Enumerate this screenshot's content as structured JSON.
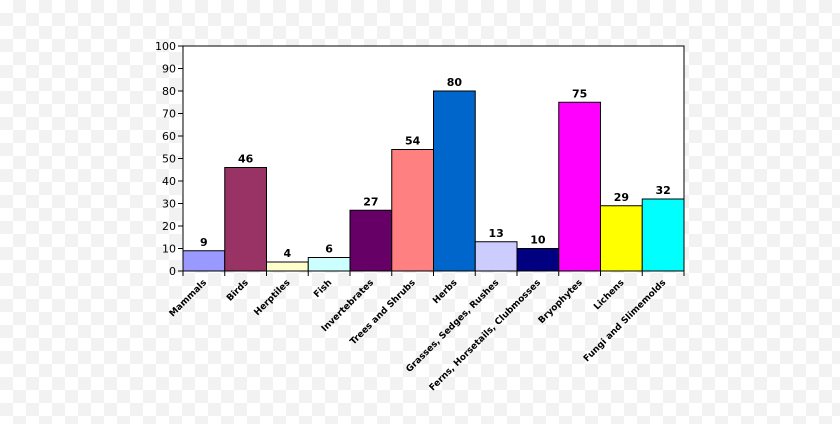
{
  "chart_data": {
    "type": "bar",
    "title": "",
    "xlabel": "",
    "ylabel": "",
    "ylim": [
      0,
      100
    ],
    "yticks": [
      0,
      10,
      20,
      30,
      40,
      50,
      60,
      70,
      80,
      90,
      100
    ],
    "categories": [
      "Mammals",
      "Birds",
      "Herptiles",
      "Fish",
      "Invertebrates",
      "Trees and Shrubs",
      "Herbs",
      "Grasses, Sedges, Rushes",
      "Ferns, Horsetails, Clubmosses",
      "Bryophytes",
      "Lichens",
      "Fungi and Slimemolds"
    ],
    "values": [
      9,
      46,
      4,
      6,
      27,
      54,
      80,
      13,
      10,
      75,
      29,
      32
    ],
    "colors": [
      "#9999ff",
      "#993366",
      "#ffffcc",
      "#ccffff",
      "#660066",
      "#ff8080",
      "#0066cc",
      "#ccccff",
      "#000080",
      "#ff00ff",
      "#ffff00",
      "#00ffff"
    ],
    "grid": false,
    "legend": "none"
  }
}
